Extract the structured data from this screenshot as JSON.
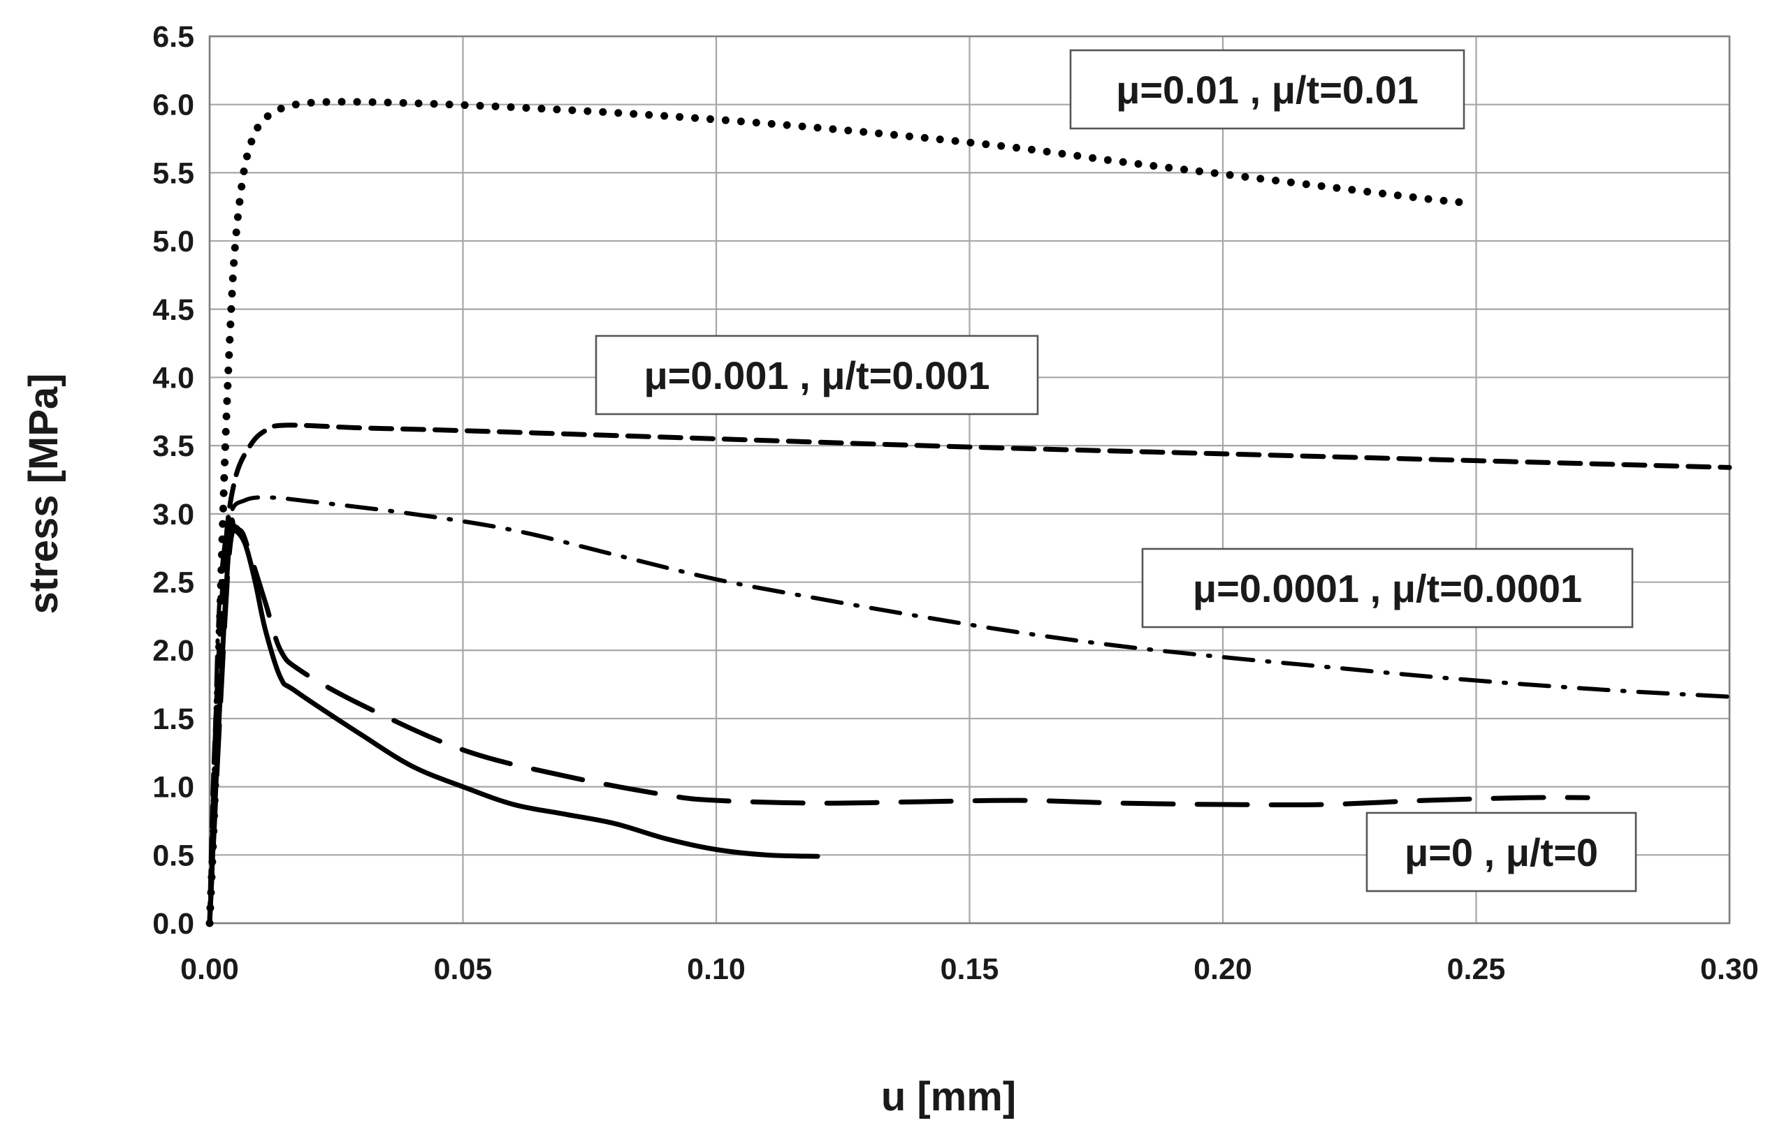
{
  "chart_data": {
    "type": "line",
    "title": "",
    "xlabel": "u [mm]",
    "ylabel": "stress [MPa]",
    "xlim": [
      0,
      0.3
    ],
    "ylim": [
      0,
      6.5
    ],
    "grid": true,
    "x_ticks": [
      "0.00",
      "0.05",
      "0.10",
      "0.15",
      "0.20",
      "0.25",
      "0.30"
    ],
    "y_ticks": [
      "0.0",
      "0.5",
      "1.0",
      "1.5",
      "2.0",
      "2.5",
      "3.0",
      "3.5",
      "4.0",
      "4.5",
      "5.0",
      "5.5",
      "6.0",
      "6.5"
    ],
    "series": [
      {
        "name": "μ=0.01 , μ/t=0.01",
        "style": "dotted",
        "points": [
          [
            0,
            0
          ],
          [
            0.001,
            0.9
          ],
          [
            0.002,
            2.2
          ],
          [
            0.003,
            3.4
          ],
          [
            0.004,
            4.3
          ],
          [
            0.005,
            4.95
          ],
          [
            0.0065,
            5.45
          ],
          [
            0.008,
            5.7
          ],
          [
            0.01,
            5.86
          ],
          [
            0.013,
            5.95
          ],
          [
            0.017,
            6.0
          ],
          [
            0.025,
            6.02
          ],
          [
            0.04,
            6.01
          ],
          [
            0.06,
            5.98
          ],
          [
            0.08,
            5.94
          ],
          [
            0.1,
            5.89
          ],
          [
            0.12,
            5.83
          ],
          [
            0.14,
            5.76
          ],
          [
            0.16,
            5.68
          ],
          [
            0.18,
            5.58
          ],
          [
            0.2,
            5.49
          ],
          [
            0.22,
            5.4
          ],
          [
            0.24,
            5.31
          ],
          [
            0.248,
            5.28
          ]
        ]
      },
      {
        "name": "μ=0.001 , μ/t=0.001",
        "style": "dashed",
        "points": [
          [
            0,
            0
          ],
          [
            0.001,
            1.3
          ],
          [
            0.003,
            2.7
          ],
          [
            0.005,
            3.25
          ],
          [
            0.008,
            3.5
          ],
          [
            0.011,
            3.61
          ],
          [
            0.015,
            3.65
          ],
          [
            0.03,
            3.63
          ],
          [
            0.05,
            3.61
          ],
          [
            0.1,
            3.55
          ],
          [
            0.15,
            3.49
          ],
          [
            0.2,
            3.44
          ],
          [
            0.25,
            3.39
          ],
          [
            0.3,
            3.34
          ]
        ]
      },
      {
        "name": "μ=0.0001 , μ/t=0.0001",
        "style": "dash-dot",
        "points": [
          [
            0,
            0
          ],
          [
            0.001,
            1.3
          ],
          [
            0.002,
            2.4
          ],
          [
            0.004,
            2.98
          ],
          [
            0.007,
            3.1
          ],
          [
            0.012,
            3.12
          ],
          [
            0.02,
            3.09
          ],
          [
            0.04,
            3.0
          ],
          [
            0.06,
            2.88
          ],
          [
            0.08,
            2.7
          ],
          [
            0.1,
            2.52
          ],
          [
            0.12,
            2.38
          ],
          [
            0.14,
            2.25
          ],
          [
            0.16,
            2.13
          ],
          [
            0.18,
            2.03
          ],
          [
            0.2,
            1.95
          ],
          [
            0.22,
            1.88
          ],
          [
            0.24,
            1.81
          ],
          [
            0.26,
            1.75
          ],
          [
            0.28,
            1.7
          ],
          [
            0.3,
            1.66
          ]
        ]
      },
      {
        "name": "μ=0 , μ/t=0",
        "style": "long-dash",
        "points": [
          [
            0,
            0
          ],
          [
            0.002,
            1.5
          ],
          [
            0.004,
            2.75
          ],
          [
            0.006,
            2.88
          ],
          [
            0.008,
            2.7
          ],
          [
            0.011,
            2.35
          ],
          [
            0.014,
            2.0
          ],
          [
            0.018,
            1.85
          ],
          [
            0.03,
            1.6
          ],
          [
            0.05,
            1.27
          ],
          [
            0.07,
            1.08
          ],
          [
            0.09,
            0.94
          ],
          [
            0.1,
            0.9
          ],
          [
            0.12,
            0.88
          ],
          [
            0.14,
            0.89
          ],
          [
            0.16,
            0.9
          ],
          [
            0.18,
            0.88
          ],
          [
            0.2,
            0.87
          ],
          [
            0.22,
            0.87
          ],
          [
            0.24,
            0.9
          ],
          [
            0.26,
            0.92
          ],
          [
            0.272,
            0.92
          ]
        ]
      },
      {
        "name": "μ=0 , μ/t=0 (solid)",
        "style": "solid",
        "points": [
          [
            0,
            0
          ],
          [
            0.002,
            1.6
          ],
          [
            0.004,
            2.85
          ],
          [
            0.005,
            2.88
          ],
          [
            0.007,
            2.78
          ],
          [
            0.009,
            2.5
          ],
          [
            0.011,
            2.15
          ],
          [
            0.014,
            1.8
          ],
          [
            0.017,
            1.7
          ],
          [
            0.03,
            1.38
          ],
          [
            0.04,
            1.15
          ],
          [
            0.05,
            1.0
          ],
          [
            0.06,
            0.87
          ],
          [
            0.07,
            0.8
          ],
          [
            0.08,
            0.73
          ],
          [
            0.09,
            0.62
          ],
          [
            0.1,
            0.54
          ],
          [
            0.11,
            0.5
          ],
          [
            0.12,
            0.49
          ]
        ]
      }
    ],
    "annotations": [
      {
        "text": "μ=0.01 , μ/t=0.01",
        "series": "μ=0.01 , μ/t=0.01"
      },
      {
        "text": "μ=0.001 , μ/t=0.001",
        "series": "μ=0.001 , μ/t=0.001"
      },
      {
        "text": "μ=0.0001 , μ/t=0.0001",
        "series": "μ=0.0001 , μ/t=0.0001"
      },
      {
        "text": "μ=0 , μ/t=0",
        "series": "μ=0 , μ/t=0"
      }
    ]
  }
}
